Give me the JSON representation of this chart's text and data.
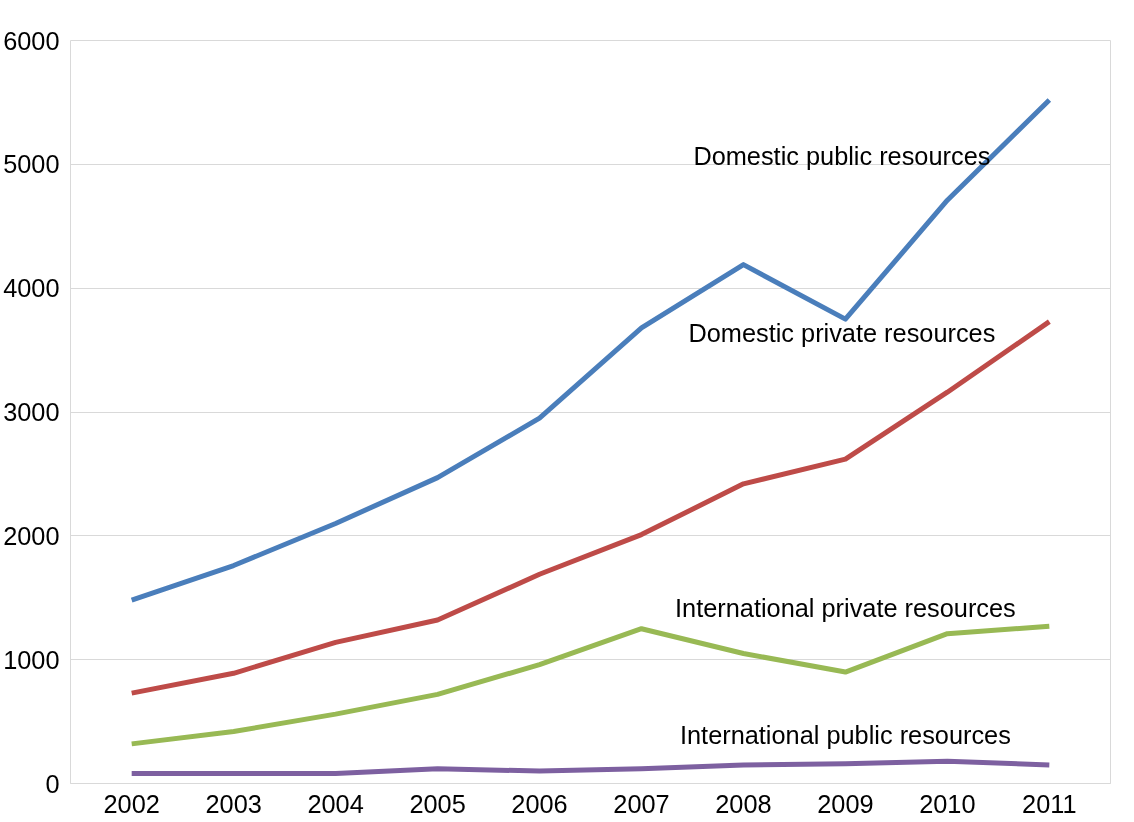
{
  "chart_data": {
    "type": "line",
    "categories": [
      "2002",
      "2003",
      "2004",
      "2005",
      "2006",
      "2007",
      "2008",
      "2009",
      "2010",
      "2011"
    ],
    "series": [
      {
        "name": "Domestic  public resources",
        "color": "#4a7ebb",
        "values": [
          1480,
          1760,
          2100,
          2470,
          2950,
          3680,
          4190,
          3750,
          4710,
          5520
        ]
      },
      {
        "name": "Domestic  private resources",
        "color": "#be4b48",
        "values": [
          730,
          890,
          1140,
          1320,
          1690,
          2010,
          2420,
          2620,
          3160,
          3730
        ]
      },
      {
        "name": "International private resources",
        "color": "#98b954",
        "values": [
          320,
          420,
          560,
          720,
          960,
          1250,
          1050,
          900,
          1210,
          1270
        ]
      },
      {
        "name": "International public resources",
        "color": "#7d60a0",
        "values": [
          80,
          80,
          80,
          120,
          100,
          120,
          150,
          160,
          180,
          150
        ]
      }
    ],
    "ylim": [
      0,
      6000
    ],
    "yticks": [
      0,
      1000,
      2000,
      3000,
      4000,
      5000,
      6000
    ],
    "grid": "y",
    "legend": false,
    "marker": "none",
    "line_style": "solid"
  }
}
